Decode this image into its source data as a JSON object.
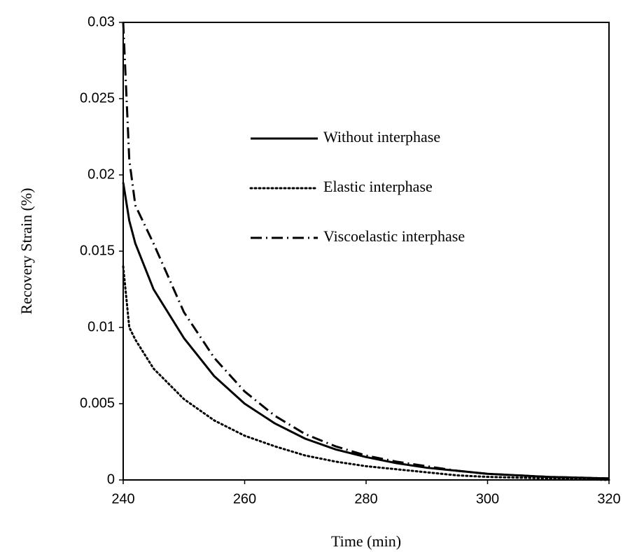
{
  "chart_data": {
    "type": "line",
    "x_label": "Time (min)",
    "y_label": "Recovery Strain (%)",
    "x": [
      240,
      241,
      242,
      245,
      250,
      255,
      260,
      265,
      270,
      275,
      280,
      285,
      290,
      295,
      300,
      310,
      320
    ],
    "series": [
      {
        "name": "Without interphase",
        "color": "#000000",
        "style": "solid",
        "values": [
          0.0195,
          0.017,
          0.0155,
          0.0125,
          0.0093,
          0.0068,
          0.005,
          0.0037,
          0.0027,
          0.002,
          0.0015,
          0.0011,
          0.0008,
          0.0006,
          0.0004,
          0.0002,
          0.0001
        ]
      },
      {
        "name": "Elastic interphase",
        "color": "#000000",
        "style": "dotted",
        "values": [
          0.014,
          0.01,
          0.0092,
          0.0073,
          0.0053,
          0.0039,
          0.0029,
          0.0022,
          0.0016,
          0.0012,
          0.0009,
          0.0007,
          0.0005,
          0.0003,
          0.0002,
          0.0001,
          0
        ]
      },
      {
        "name": "Viscoelastic interphase",
        "color": "#000000",
        "style": "dashdot",
        "values": [
          0.03,
          0.021,
          0.018,
          0.0155,
          0.011,
          0.008,
          0.0058,
          0.0042,
          0.003,
          0.0022,
          0.0016,
          0.0012,
          0.0009,
          0.0006,
          0.0004,
          0.0002,
          0.0001
        ]
      }
    ],
    "xlim": [
      240,
      320
    ],
    "xticks": [
      240,
      260,
      280,
      300,
      320
    ],
    "ylim": [
      0,
      0.03
    ],
    "yticks": [
      0,
      0.005,
      0.01,
      0.015,
      0.02,
      0.025,
      0.03
    ],
    "grid": false,
    "legend": "upper right"
  }
}
